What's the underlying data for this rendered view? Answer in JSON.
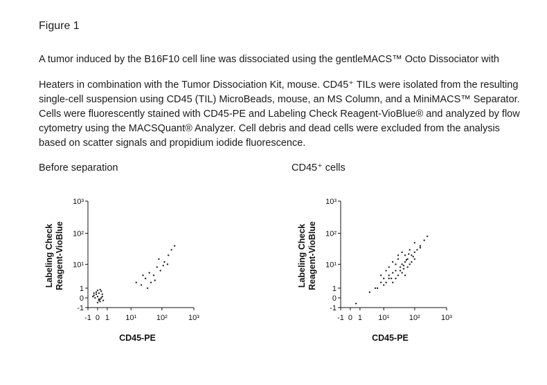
{
  "header": {
    "title": "Figure 1"
  },
  "paragraph": {
    "lines": [
      "A tumor induced by the B16F10 cell line was dissociated using the gentleMACS™ Octo Dissociator with",
      "Heaters in combination with the Tumor Dissociation Kit, mouse. CD45⁺ TILs were isolated from the resulting",
      "single-cell suspension using CD45 (TIL) MicroBeads, mouse, an MS Column, and a MiniMACS™ Separator.",
      "Cells were fluorescently stained with CD45-PE and Labeling Check Reagent-VioBlue® and analyzed by flow",
      "cytometry using the MACSQuant® Analyzer. Cell debris and dead cells were excluded from the analysis",
      "based on scatter signals and propidium iodide fluorescence."
    ]
  },
  "chart_data": [
    {
      "type": "scatter",
      "title": "Before separation",
      "xlabel": "CD45-PE",
      "ylabel": [
        "Labeling Check",
        "Reagent-VioBlue"
      ],
      "xscale": "biexponential",
      "yscale": "biexponential",
      "color": "#222222",
      "xlim": [
        -1,
        1000
      ],
      "ylim": [
        -1,
        1000
      ],
      "xticks": [
        -1,
        0,
        1,
        {
          "value": 10,
          "label": "10¹"
        },
        {
          "value": 100,
          "label": "10²"
        },
        {
          "value": 1000,
          "label": "10³"
        }
      ],
      "yticks": [
        -1,
        0,
        1,
        {
          "value": 10,
          "label": "10¹"
        },
        {
          "value": 100,
          "label": "10²"
        },
        {
          "value": 1000,
          "label": "10³"
        }
      ],
      "x": [
        -0.3,
        0.1,
        0.4,
        -0.1,
        0.2,
        0,
        0.3,
        -0.2,
        0.5,
        0.1,
        -0.4,
        0.2,
        0,
        0.3,
        -0.1,
        0.1,
        0.4,
        -0.3,
        0,
        0.2,
        15,
        22,
        30,
        40,
        55,
        70,
        90,
        120,
        160,
        200,
        35,
        60,
        80,
        110,
        25,
        45,
        150,
        250
      ],
      "values": [
        0.2,
        -0.1,
        0.3,
        0.5,
        -0.3,
        0.1,
        0.6,
        0,
        -0.2,
        0.4,
        0.1,
        0.8,
        -0.4,
        0,
        0.3,
        -0.2,
        0.1,
        0.4,
        0.7,
        -0.1,
        2,
        1.5,
        3,
        5,
        4,
        8,
        6,
        12,
        20,
        30,
        1,
        2.5,
        15,
        9,
        4,
        2,
        10,
        40
      ]
    },
    {
      "type": "scatter",
      "title": "CD45⁺ cells",
      "xlabel": "CD45-PE",
      "ylabel": [
        "Labeling Check",
        "Reagent-VioBlue"
      ],
      "xscale": "biexponential",
      "yscale": "biexponential",
      "color": "#222222",
      "xlim": [
        -1,
        1000
      ],
      "ylim": [
        -1,
        1000
      ],
      "xticks": [
        -1,
        0,
        1,
        {
          "value": 10,
          "label": "10¹"
        },
        {
          "value": 100,
          "label": "10²"
        },
        {
          "value": 1000,
          "label": "10³"
        }
      ],
      "yticks": [
        -1,
        0,
        1,
        {
          "value": 10,
          "label": "10¹"
        },
        {
          "value": 100,
          "label": "10²"
        },
        {
          "value": 1000,
          "label": "10³"
        }
      ],
      "x": [
        5,
        8,
        10,
        12,
        15,
        18,
        20,
        25,
        30,
        35,
        40,
        45,
        50,
        60,
        70,
        80,
        90,
        100,
        120,
        150,
        12,
        15,
        20,
        25,
        30,
        40,
        50,
        60,
        80,
        100,
        8,
        10,
        15,
        20,
        30,
        40,
        50,
        70,
        100,
        200,
        3,
        6,
        25,
        35,
        45,
        55,
        65,
        150,
        250,
        0.5
      ],
      "values": [
        1,
        2,
        3,
        2,
        4,
        3,
        5,
        6,
        4,
        8,
        10,
        7,
        12,
        15,
        10,
        20,
        18,
        25,
        30,
        40,
        6,
        8,
        2,
        10,
        15,
        5,
        20,
        8,
        12,
        50,
        4,
        1.5,
        3,
        12,
        20,
        25,
        4,
        30,
        15,
        60,
        0.5,
        1,
        3,
        6,
        9,
        14,
        22,
        35,
        80,
        -0.5
      ]
    }
  ]
}
